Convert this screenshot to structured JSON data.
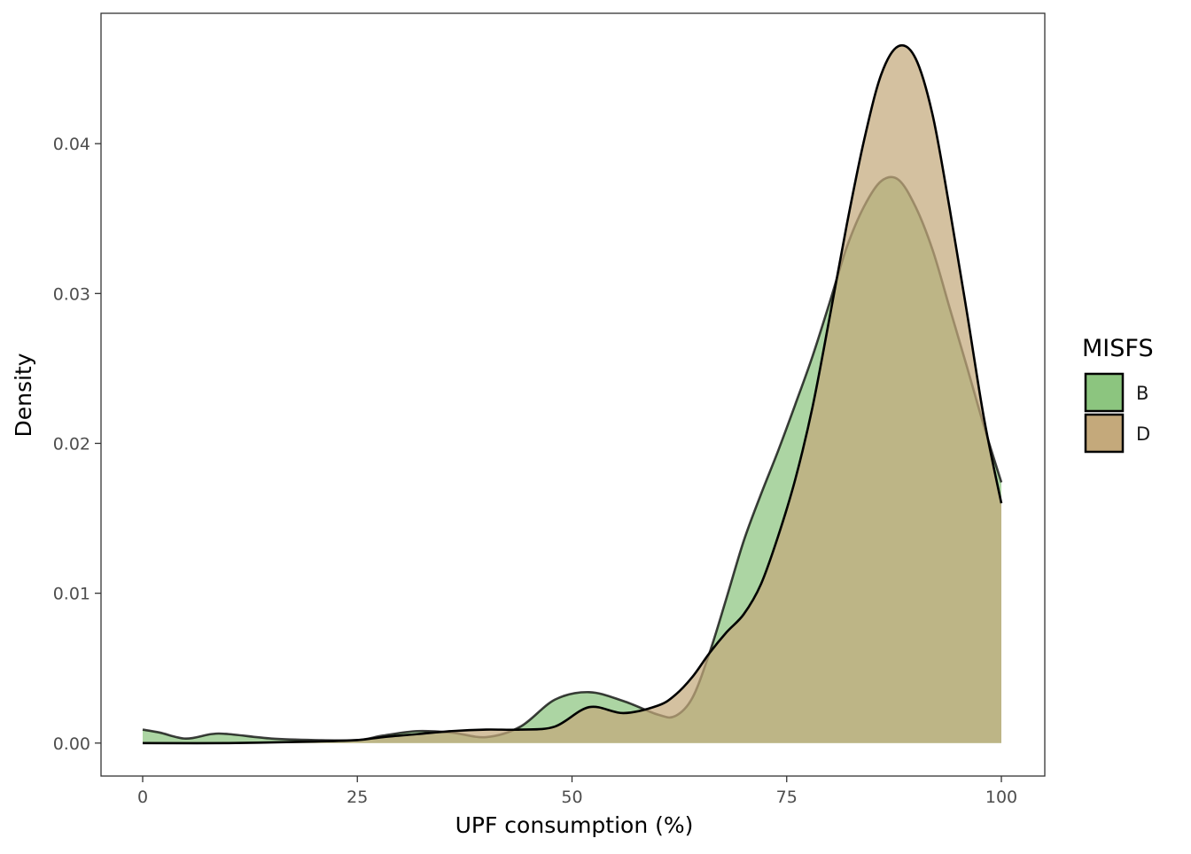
{
  "chart_data": {
    "type": "area",
    "subtype": "density",
    "xlabel": "UPF consumption (%)",
    "ylabel": "Density",
    "xlim": [
      0,
      100
    ],
    "ylim": [
      -0.0022,
      0.0487
    ],
    "x_ticks": [
      0,
      25,
      50,
      75,
      100
    ],
    "x_tick_labels": [
      "0",
      "25",
      "50",
      "75",
      "100"
    ],
    "y_ticks": [
      0,
      0.01,
      0.02,
      0.03,
      0.04
    ],
    "y_tick_labels": [
      "0.00",
      "0.01",
      "0.02",
      "0.03",
      "0.04"
    ],
    "grid": false,
    "legend": {
      "title": "MISFS",
      "position": "right"
    },
    "series": [
      {
        "name": "B",
        "color": "#8cc57f",
        "x": [
          0,
          2,
          5,
          8,
          10,
          15,
          20,
          25,
          28,
          32,
          36,
          40,
          44,
          48,
          52,
          56,
          60,
          62,
          64,
          66,
          68,
          70,
          72,
          74,
          76,
          78,
          80,
          82,
          84,
          86,
          88,
          90,
          92,
          94,
          96,
          98,
          100
        ],
        "y": [
          0.0009,
          0.0007,
          0.0003,
          0.0006,
          0.0006,
          0.0003,
          0.0002,
          0.0002,
          0.0005,
          0.0008,
          0.0007,
          0.0004,
          0.0011,
          0.0029,
          0.0034,
          0.0028,
          0.0019,
          0.0018,
          0.003,
          0.006,
          0.0097,
          0.0135,
          0.0166,
          0.0195,
          0.0226,
          0.0258,
          0.0294,
          0.0331,
          0.0358,
          0.0375,
          0.0376,
          0.0358,
          0.0329,
          0.029,
          0.0251,
          0.0211,
          0.0174
        ]
      },
      {
        "name": "D",
        "color": "#c4a97b",
        "x": [
          0,
          10,
          20,
          25,
          28,
          32,
          36,
          40,
          44,
          48,
          52,
          56,
          60,
          62,
          64,
          66,
          68,
          70,
          72,
          74,
          76,
          78,
          80,
          82,
          84,
          86,
          88,
          90,
          92,
          94,
          96,
          98,
          100
        ],
        "y": [
          0,
          0,
          0.0001,
          0.0002,
          0.0004,
          0.0006,
          0.0008,
          0.0009,
          0.0009,
          0.0011,
          0.0024,
          0.002,
          0.0025,
          0.0032,
          0.0044,
          0.006,
          0.0074,
          0.0086,
          0.0106,
          0.0138,
          0.0176,
          0.0224,
          0.0284,
          0.0346,
          0.0402,
          0.0446,
          0.0465,
          0.0457,
          0.0419,
          0.0356,
          0.0287,
          0.0216,
          0.016
        ]
      }
    ]
  }
}
